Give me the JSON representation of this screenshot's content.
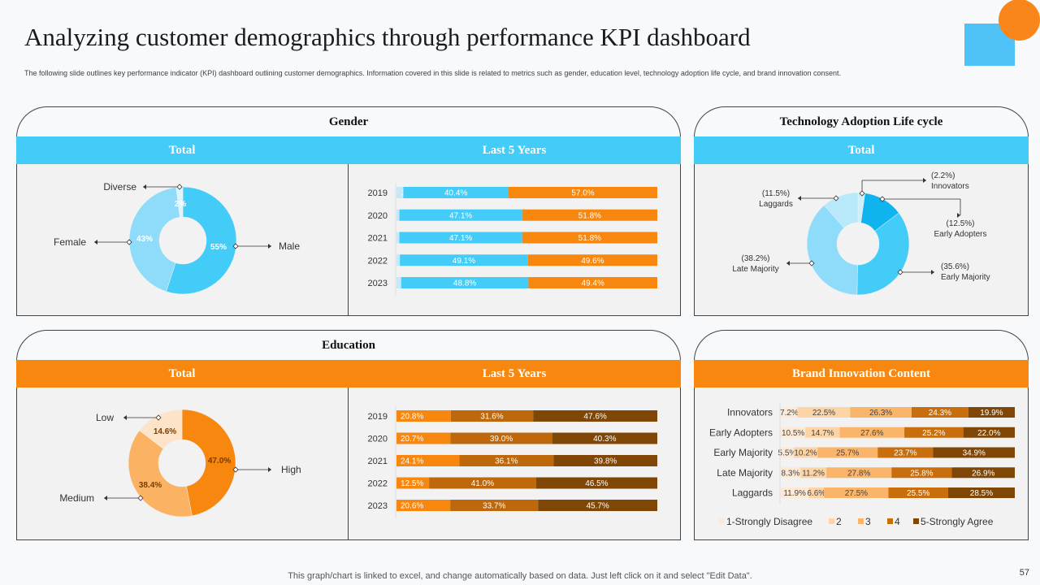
{
  "header": {
    "title": "Analyzing customer demographics through performance KPI dashboard",
    "subtitle": "The following slide outlines key performance indicator (KPI) dashboard outlining customer demographics. Information covered in this slide is related to metrics such as gender, education level, technology adoption life cycle, and brand innovation consent."
  },
  "footer": {
    "note": "This graph/chart is linked to excel,  and change automatically based on data. Just left click on it and select \"Edit Data\".",
    "page": "57"
  },
  "gender": {
    "title": "Gender",
    "total_label": "Total",
    "last5_label": "Last 5 Years"
  },
  "tech": {
    "title": "Technology Adoption Life cycle",
    "total_label": "Total"
  },
  "education": {
    "title": "Education",
    "total_label": "Total",
    "last5_label": "Last 5 Years"
  },
  "brand": {
    "title": "Brand Innovation Content"
  },
  "colors": {
    "blue": "#43ccf8",
    "orange": "#f7870f"
  },
  "chart_data": [
    {
      "id": "gender_total",
      "type": "pie",
      "variant": "donut",
      "labels": [
        "Male",
        "Female",
        "Diverse"
      ],
      "values": [
        55,
        43,
        2
      ],
      "value_labels": [
        "55%",
        "43%",
        "2%"
      ],
      "colors": [
        "#43ccf8",
        "#8fdcfa",
        "#dff3fb"
      ]
    },
    {
      "id": "gender_last5",
      "type": "bar",
      "orientation": "horizontal",
      "stacked": true,
      "categories": [
        "2019",
        "2020",
        "2021",
        "2022",
        "2023"
      ],
      "series": [
        {
          "values": [
            2.6,
            1.1,
            1.1,
            1.3,
            1.8
          ],
          "labels": [
            "2.6%",
            "1.1%",
            "1.1%",
            "1.3%",
            "1.8%"
          ],
          "color": "#c7e9f7"
        },
        {
          "values": [
            40.4,
            47.1,
            47.1,
            49.1,
            48.8
          ],
          "labels": [
            "40.4%",
            "47.1%",
            "47.1%",
            "49.1%",
            "48.8%"
          ],
          "color": "#43ccf8"
        },
        {
          "values": [
            57.0,
            51.8,
            51.8,
            49.6,
            49.4
          ],
          "labels": [
            "57.0%",
            "51.8%",
            "51.8%",
            "49.6%",
            "49.4%"
          ],
          "color": "#f7870f"
        }
      ]
    },
    {
      "id": "tech_total",
      "type": "pie",
      "variant": "donut",
      "labels": [
        "Innovators",
        "Early Adopters",
        "Early Majority",
        "Late Majority",
        "Laggards"
      ],
      "values": [
        2.2,
        12.5,
        35.6,
        38.2,
        11.5
      ],
      "value_labels": [
        "(2.2%)",
        "(12.5%)",
        "(35.6%)",
        "(38.2%)",
        "(11.5%)"
      ],
      "colors": [
        "#cdeefb",
        "#0fb4ee",
        "#43ccf8",
        "#8fdcfa",
        "#b8e9fb"
      ]
    },
    {
      "id": "education_total",
      "type": "pie",
      "variant": "donut",
      "labels": [
        "High",
        "Medium",
        "Low"
      ],
      "values": [
        47.0,
        38.4,
        14.6
      ],
      "value_labels": [
        "47.0%",
        "38.4%",
        "14.6%"
      ],
      "colors": [
        "#f7870f",
        "#fbb363",
        "#fde3c8"
      ]
    },
    {
      "id": "education_last5",
      "type": "bar",
      "orientation": "horizontal",
      "stacked": true,
      "categories": [
        "2019",
        "2020",
        "2021",
        "2022",
        "2023"
      ],
      "series": [
        {
          "values": [
            20.8,
            20.7,
            24.1,
            12.5,
            20.6
          ],
          "labels": [
            "20.8%",
            "20.7%",
            "24.1%",
            "12.5%",
            "20.6%"
          ],
          "color": "#f7870f"
        },
        {
          "values": [
            31.6,
            39.0,
            36.1,
            41.0,
            33.7
          ],
          "labels": [
            "31.6%",
            "39.0%",
            "36.1%",
            "41.0%",
            "33.7%"
          ],
          "color": "#bf670b"
        },
        {
          "values": [
            47.6,
            40.3,
            39.8,
            46.5,
            45.7
          ],
          "labels": [
            "47.6%",
            "40.3%",
            "39.8%",
            "46.5%",
            "45.7%"
          ],
          "color": "#7f4606"
        }
      ]
    },
    {
      "id": "brand_innovation",
      "type": "bar",
      "orientation": "horizontal",
      "stacked": true,
      "categories": [
        "Innovators",
        "Early Adopters",
        "Early Majority",
        "Late Majority",
        "Laggards"
      ],
      "legend_position": "bottom",
      "series": [
        {
          "name": "1-Strongly Disagree",
          "values": [
            7.2,
            10.5,
            5.5,
            8.3,
            11.9
          ],
          "labels": [
            "7.2%",
            "10.5%",
            "5.5%",
            "8.3%",
            "11.9%"
          ],
          "color": "#fde9d4"
        },
        {
          "name": "2",
          "values": [
            22.5,
            14.7,
            10.2,
            11.2,
            6.6
          ],
          "labels": [
            "22.5%",
            "14.7%",
            "10.2%",
            "11.2%",
            "6.6%"
          ],
          "color": "#fcd4a6"
        },
        {
          "name": "3",
          "values": [
            26.3,
            27.6,
            25.7,
            27.8,
            27.5
          ],
          "labels": [
            "26.3%",
            "27.6%",
            "25.7%",
            "27.8%",
            "27.5%"
          ],
          "color": "#fbb56a"
        },
        {
          "name": "4",
          "values": [
            24.3,
            25.2,
            23.7,
            25.8,
            25.5
          ],
          "labels": [
            "24.3%",
            "25.2%",
            "23.7%",
            "25.8%",
            "25.5%"
          ],
          "color": "#c86e0d"
        },
        {
          "name": "5-Strongly Agree",
          "values": [
            19.9,
            22.0,
            34.9,
            26.9,
            28.5
          ],
          "labels": [
            "19.9%",
            "22.0%",
            "34.9%",
            "26.9%",
            "28.5%"
          ],
          "color": "#7f4606"
        }
      ]
    }
  ]
}
